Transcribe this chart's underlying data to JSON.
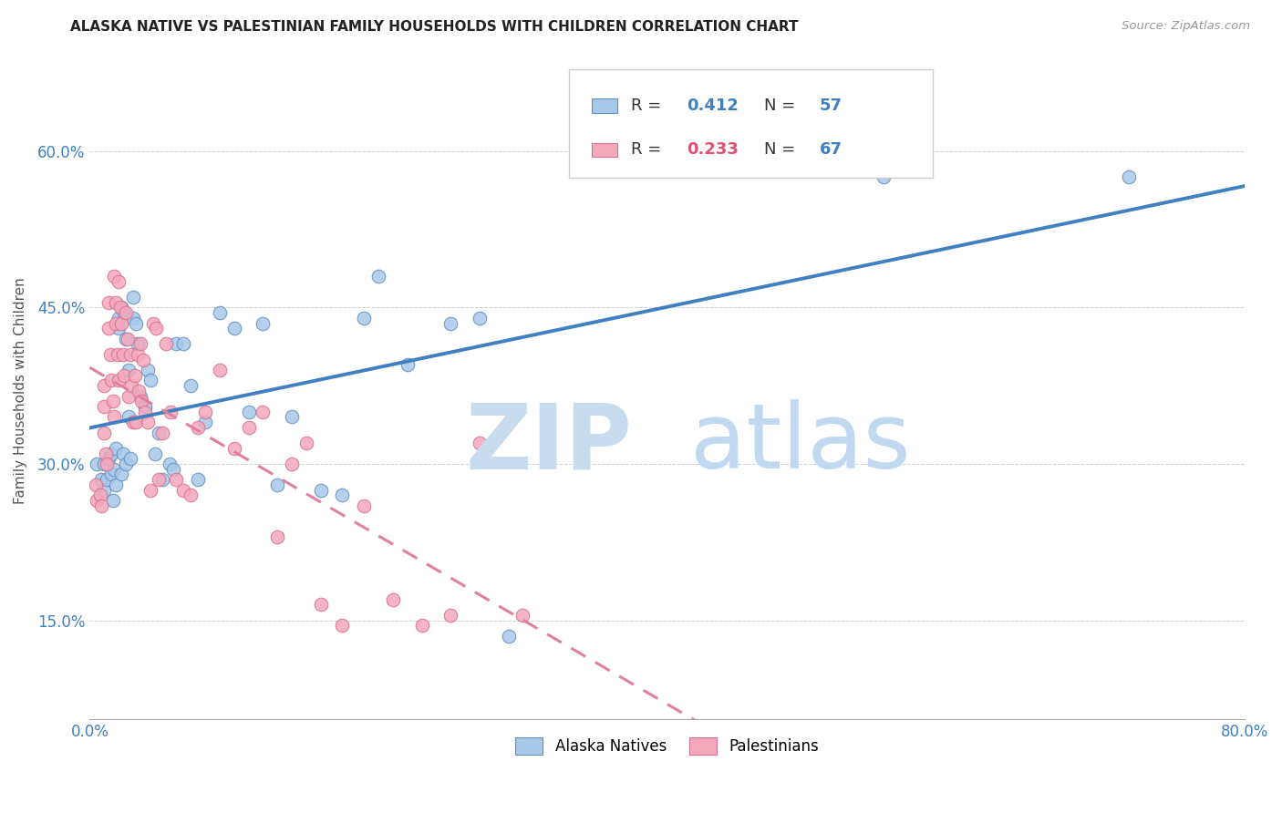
{
  "title": "ALASKA NATIVE VS PALESTINIAN FAMILY HOUSEHOLDS WITH CHILDREN CORRELATION CHART",
  "source": "Source: ZipAtlas.com",
  "ylabel": "Family Households with Children",
  "xmin": 0.0,
  "xmax": 0.8,
  "ymin": 0.055,
  "ymax": 0.685,
  "xticks": [
    0.0,
    0.1,
    0.2,
    0.3,
    0.4,
    0.5,
    0.6,
    0.7,
    0.8
  ],
  "yticks": [
    0.15,
    0.3,
    0.45,
    0.6
  ],
  "yticklabels": [
    "15.0%",
    "30.0%",
    "45.0%",
    "60.0%"
  ],
  "alaska_color": "#A8C8E8",
  "palest_color": "#F4A8BC",
  "alaska_edge_color": "#6090C0",
  "palest_edge_color": "#D87090",
  "alaska_line_color": "#4080C0",
  "palest_line_color": "#E080A0",
  "alaska_R": 0.412,
  "alaska_N": 57,
  "palest_R": 0.233,
  "palest_N": 67,
  "watermark_zip_color": "#C8DCF0",
  "watermark_atlas_color": "#C0D8F0",
  "alaska_x": [
    0.005,
    0.008,
    0.01,
    0.01,
    0.012,
    0.013,
    0.015,
    0.015,
    0.016,
    0.017,
    0.018,
    0.018,
    0.02,
    0.02,
    0.022,
    0.022,
    0.023,
    0.024,
    0.025,
    0.025,
    0.027,
    0.027,
    0.028,
    0.03,
    0.03,
    0.032,
    0.033,
    0.035,
    0.038,
    0.04,
    0.042,
    0.045,
    0.048,
    0.05,
    0.055,
    0.058,
    0.06,
    0.065,
    0.07,
    0.075,
    0.08,
    0.09,
    0.1,
    0.11,
    0.12,
    0.13,
    0.14,
    0.16,
    0.175,
    0.19,
    0.2,
    0.22,
    0.25,
    0.27,
    0.29,
    0.55,
    0.72
  ],
  "alaska_y": [
    0.3,
    0.285,
    0.3,
    0.275,
    0.285,
    0.305,
    0.31,
    0.29,
    0.265,
    0.295,
    0.315,
    0.28,
    0.44,
    0.43,
    0.45,
    0.29,
    0.31,
    0.445,
    0.42,
    0.3,
    0.39,
    0.345,
    0.305,
    0.46,
    0.44,
    0.435,
    0.415,
    0.365,
    0.355,
    0.39,
    0.38,
    0.31,
    0.33,
    0.285,
    0.3,
    0.295,
    0.415,
    0.415,
    0.375,
    0.285,
    0.34,
    0.445,
    0.43,
    0.35,
    0.435,
    0.28,
    0.345,
    0.275,
    0.27,
    0.44,
    0.48,
    0.395,
    0.435,
    0.44,
    0.135,
    0.575,
    0.575
  ],
  "palest_x": [
    0.004,
    0.005,
    0.007,
    0.008,
    0.01,
    0.01,
    0.01,
    0.011,
    0.012,
    0.013,
    0.013,
    0.014,
    0.015,
    0.016,
    0.017,
    0.017,
    0.018,
    0.018,
    0.019,
    0.02,
    0.02,
    0.021,
    0.022,
    0.023,
    0.024,
    0.025,
    0.026,
    0.027,
    0.028,
    0.029,
    0.03,
    0.031,
    0.032,
    0.033,
    0.034,
    0.035,
    0.036,
    0.037,
    0.038,
    0.04,
    0.042,
    0.044,
    0.046,
    0.048,
    0.05,
    0.053,
    0.056,
    0.06,
    0.065,
    0.07,
    0.075,
    0.08,
    0.09,
    0.1,
    0.11,
    0.12,
    0.13,
    0.14,
    0.15,
    0.16,
    0.175,
    0.19,
    0.21,
    0.23,
    0.25,
    0.27,
    0.3
  ],
  "palest_y": [
    0.28,
    0.265,
    0.27,
    0.26,
    0.375,
    0.355,
    0.33,
    0.31,
    0.3,
    0.455,
    0.43,
    0.405,
    0.38,
    0.36,
    0.345,
    0.48,
    0.455,
    0.435,
    0.405,
    0.38,
    0.475,
    0.45,
    0.435,
    0.405,
    0.385,
    0.445,
    0.42,
    0.365,
    0.405,
    0.375,
    0.34,
    0.385,
    0.34,
    0.405,
    0.37,
    0.415,
    0.36,
    0.4,
    0.35,
    0.34,
    0.275,
    0.435,
    0.43,
    0.285,
    0.33,
    0.415,
    0.35,
    0.285,
    0.275,
    0.27,
    0.335,
    0.35,
    0.39,
    0.315,
    0.335,
    0.35,
    0.23,
    0.3,
    0.32,
    0.165,
    0.145,
    0.26,
    0.17,
    0.145,
    0.155,
    0.32,
    0.155
  ]
}
